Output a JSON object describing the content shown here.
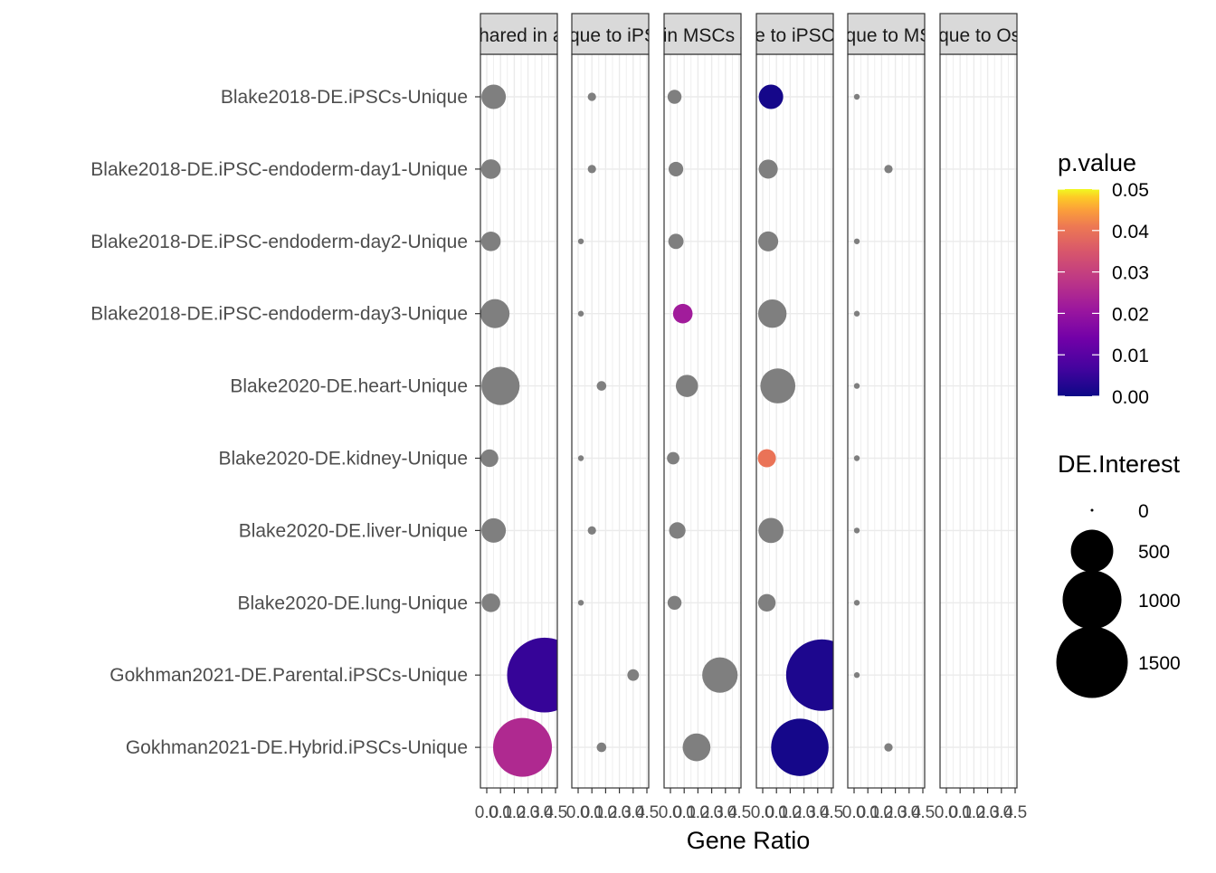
{
  "chart_data": {
    "type": "scatter",
    "xlabel": "Gene Ratio",
    "x_tick_labels": [
      "0.0",
      "0.1",
      "0.2",
      "0.3",
      "0.4",
      "0.5"
    ],
    "xlim": [
      0,
      0.5
    ],
    "panels": [
      "Shared in all",
      "Unique to iPSCs",
      "Shared in MSCs & Osteo",
      "Unique to iPSCs only",
      "Unique to MSCs",
      "Unique to Osteo"
    ],
    "categories": [
      "Blake2018-DE.iPSCs-Unique",
      "Blake2018-DE.iPSC-endoderm-day1-Unique",
      "Blake2018-DE.iPSC-endoderm-day2-Unique",
      "Blake2018-DE.iPSC-endoderm-day3-Unique",
      "Blake2020-DE.heart-Unique",
      "Blake2020-DE.kidney-Unique",
      "Blake2020-DE.liver-Unique",
      "Blake2020-DE.lung-Unique",
      "Gokhman2021-DE.Parental.iPSCs-Unique",
      "Gokhman2021-DE.Hybrid.iPSCs-Unique"
    ],
    "points": [
      {
        "panel": 0,
        "row": 0,
        "x": 0.05,
        "de": 150,
        "p": null
      },
      {
        "panel": 0,
        "row": 1,
        "x": 0.03,
        "de": 90,
        "p": null
      },
      {
        "panel": 0,
        "row": 2,
        "x": 0.03,
        "de": 90,
        "p": null
      },
      {
        "panel": 0,
        "row": 3,
        "x": 0.06,
        "de": 220,
        "p": null
      },
      {
        "panel": 0,
        "row": 4,
        "x": 0.1,
        "de": 400,
        "p": null
      },
      {
        "panel": 0,
        "row": 5,
        "x": 0.02,
        "de": 70,
        "p": null
      },
      {
        "panel": 0,
        "row": 6,
        "x": 0.05,
        "de": 150,
        "p": null
      },
      {
        "panel": 0,
        "row": 7,
        "x": 0.03,
        "de": 80,
        "p": null
      },
      {
        "panel": 0,
        "row": 8,
        "x": 0.42,
        "de": 1650,
        "p": 0.005
      },
      {
        "panel": 0,
        "row": 9,
        "x": 0.26,
        "de": 1000,
        "p": 0.025
      },
      {
        "panel": 1,
        "row": 0,
        "x": 0.1,
        "de": 10,
        "p": null
      },
      {
        "panel": 1,
        "row": 1,
        "x": 0.1,
        "de": 10,
        "p": null
      },
      {
        "panel": 1,
        "row": 2,
        "x": 0.02,
        "de": 3,
        "p": null
      },
      {
        "panel": 1,
        "row": 3,
        "x": 0.02,
        "de": 3,
        "p": null
      },
      {
        "panel": 1,
        "row": 4,
        "x": 0.17,
        "de": 15,
        "p": null
      },
      {
        "panel": 1,
        "row": 5,
        "x": 0.02,
        "de": 3,
        "p": null
      },
      {
        "panel": 1,
        "row": 6,
        "x": 0.1,
        "de": 10,
        "p": null
      },
      {
        "panel": 1,
        "row": 7,
        "x": 0.02,
        "de": 3,
        "p": null
      },
      {
        "panel": 1,
        "row": 8,
        "x": 0.4,
        "de": 25,
        "p": null
      },
      {
        "panel": 1,
        "row": 9,
        "x": 0.17,
        "de": 15,
        "p": null
      },
      {
        "panel": 2,
        "row": 0,
        "x": 0.03,
        "de": 40,
        "p": null
      },
      {
        "panel": 2,
        "row": 1,
        "x": 0.04,
        "de": 45,
        "p": null
      },
      {
        "panel": 2,
        "row": 2,
        "x": 0.04,
        "de": 50,
        "p": null
      },
      {
        "panel": 2,
        "row": 3,
        "x": 0.09,
        "de": 90,
        "p": 0.022
      },
      {
        "panel": 2,
        "row": 4,
        "x": 0.12,
        "de": 120,
        "p": null
      },
      {
        "panel": 2,
        "row": 5,
        "x": 0.02,
        "de": 30,
        "p": null
      },
      {
        "panel": 2,
        "row": 6,
        "x": 0.05,
        "de": 60,
        "p": null
      },
      {
        "panel": 2,
        "row": 7,
        "x": 0.03,
        "de": 40,
        "p": null
      },
      {
        "panel": 2,
        "row": 8,
        "x": 0.36,
        "de": 340,
        "p": null
      },
      {
        "panel": 2,
        "row": 9,
        "x": 0.19,
        "de": 200,
        "p": null
      },
      {
        "panel": 3,
        "row": 0,
        "x": 0.06,
        "de": 150,
        "p": 0.001
      },
      {
        "panel": 3,
        "row": 1,
        "x": 0.04,
        "de": 85,
        "p": null
      },
      {
        "panel": 3,
        "row": 2,
        "x": 0.04,
        "de": 95,
        "p": null
      },
      {
        "panel": 3,
        "row": 3,
        "x": 0.07,
        "de": 210,
        "p": null
      },
      {
        "panel": 3,
        "row": 4,
        "x": 0.11,
        "de": 330,
        "p": null
      },
      {
        "panel": 3,
        "row": 5,
        "x": 0.03,
        "de": 75,
        "p": 0.04
      },
      {
        "panel": 3,
        "row": 6,
        "x": 0.06,
        "de": 160,
        "p": null
      },
      {
        "panel": 3,
        "row": 7,
        "x": 0.03,
        "de": 70,
        "p": null
      },
      {
        "panel": 3,
        "row": 8,
        "x": 0.43,
        "de": 1500,
        "p": 0.002
      },
      {
        "panel": 3,
        "row": 9,
        "x": 0.27,
        "de": 950,
        "p": 0.001
      },
      {
        "panel": 4,
        "row": 0,
        "x": 0.02,
        "de": 3,
        "p": null
      },
      {
        "panel": 4,
        "row": 1,
        "x": 0.25,
        "de": 10,
        "p": null
      },
      {
        "panel": 4,
        "row": 2,
        "x": 0.02,
        "de": 3,
        "p": null
      },
      {
        "panel": 4,
        "row": 3,
        "x": 0.02,
        "de": 3,
        "p": null
      },
      {
        "panel": 4,
        "row": 4,
        "x": 0.02,
        "de": 3,
        "p": null
      },
      {
        "panel": 4,
        "row": 5,
        "x": 0.02,
        "de": 3,
        "p": null
      },
      {
        "panel": 4,
        "row": 6,
        "x": 0.02,
        "de": 3,
        "p": null
      },
      {
        "panel": 4,
        "row": 7,
        "x": 0.02,
        "de": 3,
        "p": null
      },
      {
        "panel": 4,
        "row": 8,
        "x": 0.02,
        "de": 3,
        "p": null
      },
      {
        "panel": 4,
        "row": 9,
        "x": 0.25,
        "de": 10,
        "p": null
      }
    ],
    "na_color": "#7f7f7f",
    "grid": true,
    "legends": {
      "color": {
        "title": "p.value",
        "ticks": [
          "0.05",
          "0.04",
          "0.03",
          "0.02",
          "0.01",
          "0.00"
        ],
        "range": [
          0,
          0.05
        ],
        "colormap": "plasma"
      },
      "size": {
        "title": "DE.Interest",
        "breaks": [
          0,
          500,
          1000,
          1500
        ],
        "labels": [
          "0",
          "500",
          "1000",
          "1500"
        ]
      },
      "placement": "right"
    }
  }
}
